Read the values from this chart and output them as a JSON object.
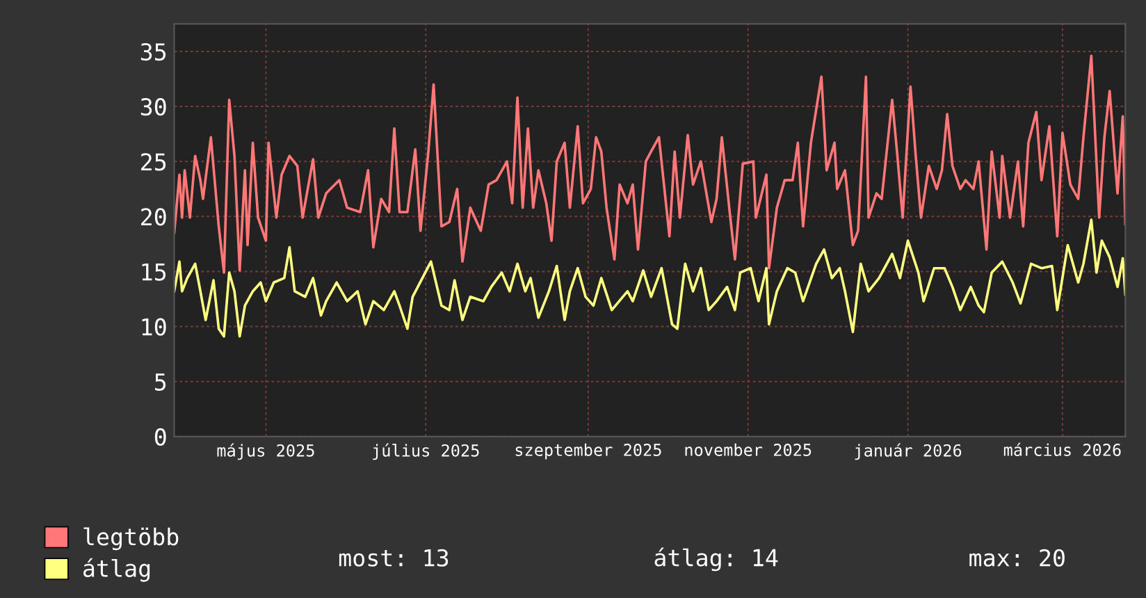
{
  "chart_data": {
    "type": "line",
    "xlim": [
      "2025-04-11",
      "2026-04-09"
    ],
    "xticks": [
      {
        "value": "2025-05-16",
        "label": "május 2025"
      },
      {
        "value": "2025-07-16",
        "label": "július 2025"
      },
      {
        "value": "2025-09-16",
        "label": "szeptember 2025"
      },
      {
        "value": "2025-11-16",
        "label": "november 2025"
      },
      {
        "value": "2026-01-16",
        "label": "január 2026"
      },
      {
        "value": "2026-03-16",
        "label": "március 2026"
      }
    ],
    "ylim": [
      0,
      37.5
    ],
    "yticks": [
      0,
      5,
      10,
      15,
      20,
      25,
      30,
      35
    ],
    "grid": true,
    "legend": "bottom",
    "marker": "none",
    "line_style": "solid",
    "annotations": [
      "most: 13",
      "átlag: 14",
      "max: 20"
    ],
    "series": [
      {
        "name": "legtöbb",
        "color": "#ff7777",
        "x": [
          "2025-04-11",
          "2025-04-13",
          "2025-04-14",
          "2025-04-15",
          "2025-04-17",
          "2025-04-19",
          "2025-04-21",
          "2025-04-22",
          "2025-04-25",
          "2025-04-28",
          "2025-04-30",
          "2025-05-02",
          "2025-05-04",
          "2025-05-06",
          "2025-05-08",
          "2025-05-09",
          "2025-05-11",
          "2025-05-13",
          "2025-05-16",
          "2025-05-17",
          "2025-05-20",
          "2025-05-22",
          "2025-05-25",
          "2025-05-28",
          "2025-05-30",
          "2025-06-03",
          "2025-06-05",
          "2025-06-08",
          "2025-06-13",
          "2025-06-16",
          "2025-06-21",
          "2025-06-24",
          "2025-06-26",
          "2025-06-29",
          "2025-07-02",
          "2025-07-04",
          "2025-07-06",
          "2025-07-09",
          "2025-07-12",
          "2025-07-14",
          "2025-07-17",
          "2025-07-19",
          "2025-07-22",
          "2025-07-25",
          "2025-07-28",
          "2025-07-30",
          "2025-08-02",
          "2025-08-06",
          "2025-08-09",
          "2025-08-12",
          "2025-08-16",
          "2025-08-18",
          "2025-08-20",
          "2025-08-22",
          "2025-08-24",
          "2025-08-26",
          "2025-08-28",
          "2025-08-31",
          "2025-09-02",
          "2025-09-04",
          "2025-09-07",
          "2025-09-09",
          "2025-09-12",
          "2025-09-14",
          "2025-09-17",
          "2025-09-19",
          "2025-09-21",
          "2025-09-23",
          "2025-09-26",
          "2025-09-28",
          "2025-10-01",
          "2025-10-03",
          "2025-10-05",
          "2025-10-08",
          "2025-10-10",
          "2025-10-13",
          "2025-10-17",
          "2025-10-19",
          "2025-10-21",
          "2025-10-24",
          "2025-10-26",
          "2025-10-29",
          "2025-11-02",
          "2025-11-04",
          "2025-11-06",
          "2025-11-09",
          "2025-11-11",
          "2025-11-14",
          "2025-11-18",
          "2025-11-19",
          "2025-11-23",
          "2025-11-24",
          "2025-11-27",
          "2025-11-30",
          "2025-12-03",
          "2025-12-05",
          "2025-12-07",
          "2025-12-10",
          "2025-12-14",
          "2025-12-16",
          "2025-12-19",
          "2025-12-20",
          "2025-12-23",
          "2025-12-26",
          "2025-12-28",
          "2025-12-31",
          "2026-01-01",
          "2026-01-04",
          "2026-01-06",
          "2026-01-10",
          "2026-01-12",
          "2026-01-14",
          "2026-01-17",
          "2026-01-19",
          "2026-01-21",
          "2026-01-24",
          "2026-01-27",
          "2026-01-29",
          "2026-01-31",
          "2026-02-02",
          "2026-02-05",
          "2026-02-07",
          "2026-02-10",
          "2026-02-12",
          "2026-02-15",
          "2026-02-17",
          "2026-02-20",
          "2026-02-21",
          "2026-02-24",
          "2026-02-27",
          "2026-03-01",
          "2026-03-03",
          "2026-03-06",
          "2026-03-08",
          "2026-03-11",
          "2026-03-14",
          "2026-03-16",
          "2026-03-19",
          "2026-03-22",
          "2026-03-24",
          "2026-03-27",
          "2026-03-30",
          "2026-04-01",
          "2026-04-03",
          "2026-04-06",
          "2026-04-08",
          "2026-04-09"
        ],
        "values": [
          18.5,
          23.8,
          19.9,
          24.2,
          19.9,
          25.5,
          23.3,
          21.6,
          27.2,
          19.1,
          14.9,
          30.6,
          25.5,
          15.1,
          24.2,
          17.4,
          26.7,
          19.9,
          17.8,
          26.7,
          19.9,
          23.8,
          25.5,
          24.6,
          19.9,
          25.2,
          19.9,
          22.1,
          23.3,
          20.8,
          20.4,
          24.2,
          17.2,
          21.6,
          20.4,
          28.0,
          20.4,
          20.4,
          26.1,
          18.7,
          25.9,
          32.0,
          19.1,
          19.5,
          22.5,
          15.9,
          20.8,
          18.7,
          22.9,
          23.3,
          25.0,
          21.2,
          30.8,
          20.8,
          28.0,
          20.8,
          24.2,
          21.2,
          17.8,
          25.0,
          26.7,
          20.8,
          28.2,
          21.2,
          22.5,
          27.2,
          25.9,
          20.8,
          16.1,
          22.9,
          21.2,
          22.9,
          17.0,
          25.0,
          25.9,
          27.2,
          18.2,
          25.9,
          19.9,
          27.4,
          22.9,
          25.0,
          19.5,
          21.6,
          27.2,
          20.4,
          16.1,
          24.8,
          25.0,
          19.9,
          23.8,
          15.3,
          20.8,
          23.3,
          23.3,
          26.7,
          19.1,
          26.7,
          32.7,
          24.2,
          26.7,
          22.5,
          24.2,
          17.4,
          18.7,
          32.7,
          19.9,
          22.1,
          21.6,
          30.6,
          25.5,
          19.9,
          31.8,
          25.5,
          19.9,
          24.6,
          22.5,
          24.2,
          29.3,
          24.6,
          22.5,
          23.3,
          22.5,
          25.0,
          17.0,
          25.9,
          19.9,
          25.5,
          19.9,
          25.0,
          19.1,
          26.7,
          29.5,
          23.3,
          28.2,
          18.2,
          27.6,
          22.9,
          21.6,
          27.2,
          34.6,
          19.9,
          27.2,
          31.4,
          22.1,
          29.1,
          19.3
        ]
      },
      {
        "name": "átlag",
        "color": "#ffff80",
        "x": [
          "2025-04-11",
          "2025-04-13",
          "2025-04-14",
          "2025-04-16",
          "2025-04-19",
          "2025-04-21",
          "2025-04-23",
          "2025-04-26",
          "2025-04-28",
          "2025-04-30",
          "2025-05-02",
          "2025-05-04",
          "2025-05-06",
          "2025-05-08",
          "2025-05-11",
          "2025-05-14",
          "2025-05-16",
          "2025-05-19",
          "2025-05-23",
          "2025-05-25",
          "2025-05-27",
          "2025-05-31",
          "2025-06-03",
          "2025-06-06",
          "2025-06-08",
          "2025-06-12",
          "2025-06-16",
          "2025-06-20",
          "2025-06-23",
          "2025-06-26",
          "2025-06-30",
          "2025-07-04",
          "2025-07-06",
          "2025-07-09",
          "2025-07-11",
          "2025-07-18",
          "2025-07-22",
          "2025-07-25",
          "2025-07-27",
          "2025-07-30",
          "2025-08-02",
          "2025-08-07",
          "2025-08-10",
          "2025-08-14",
          "2025-08-17",
          "2025-08-20",
          "2025-08-23",
          "2025-08-25",
          "2025-08-28",
          "2025-09-01",
          "2025-09-04",
          "2025-09-07",
          "2025-09-09",
          "2025-09-12",
          "2025-09-15",
          "2025-09-18",
          "2025-09-21",
          "2025-09-25",
          "2025-10-01",
          "2025-10-03",
          "2025-10-07",
          "2025-10-10",
          "2025-10-14",
          "2025-10-18",
          "2025-10-20",
          "2025-10-23",
          "2025-10-26",
          "2025-10-29",
          "2025-11-01",
          "2025-11-04",
          "2025-11-08",
          "2025-11-11",
          "2025-11-13",
          "2025-11-17",
          "2025-11-20",
          "2025-11-23",
          "2025-11-24",
          "2025-11-27",
          "2025-12-01",
          "2025-12-04",
          "2025-12-07",
          "2025-12-12",
          "2025-12-15",
          "2025-12-18",
          "2025-12-21",
          "2025-12-23",
          "2025-12-26",
          "2025-12-29",
          "2026-01-01",
          "2026-01-05",
          "2026-01-10",
          "2026-01-13",
          "2026-01-16",
          "2026-01-20",
          "2026-01-22",
          "2026-01-26",
          "2026-01-30",
          "2026-02-02",
          "2026-02-05",
          "2026-02-09",
          "2026-02-12",
          "2026-02-14",
          "2026-02-17",
          "2026-02-21",
          "2026-02-25",
          "2026-02-28",
          "2026-03-04",
          "2026-03-08",
          "2026-03-12",
          "2026-03-14",
          "2026-03-18",
          "2026-03-22",
          "2026-03-24",
          "2026-03-27",
          "2026-03-29",
          "2026-03-31",
          "2026-04-03",
          "2026-04-06",
          "2026-04-08",
          "2026-04-09"
        ],
        "values": [
          13.2,
          15.9,
          13.2,
          14.4,
          15.7,
          13.2,
          10.6,
          14.2,
          9.8,
          9.1,
          14.9,
          13.2,
          9.1,
          11.9,
          13.2,
          14.0,
          12.3,
          14.0,
          14.4,
          17.2,
          13.2,
          12.7,
          14.4,
          11.0,
          12.3,
          14.0,
          12.3,
          13.2,
          10.2,
          12.3,
          11.5,
          13.2,
          11.9,
          9.8,
          12.7,
          15.9,
          11.9,
          11.5,
          14.2,
          10.6,
          12.7,
          12.3,
          13.6,
          14.9,
          13.2,
          15.7,
          13.2,
          14.4,
          10.8,
          13.2,
          15.5,
          10.6,
          13.2,
          15.3,
          12.7,
          11.9,
          14.4,
          11.5,
          13.2,
          12.3,
          15.1,
          12.7,
          15.3,
          10.2,
          9.8,
          15.7,
          13.2,
          15.3,
          11.5,
          12.3,
          13.6,
          11.5,
          14.9,
          15.3,
          12.3,
          15.3,
          10.2,
          13.2,
          15.3,
          14.9,
          12.3,
          15.7,
          17.0,
          14.4,
          15.3,
          13.2,
          9.5,
          15.7,
          13.2,
          14.4,
          16.6,
          14.4,
          17.8,
          14.9,
          12.3,
          15.3,
          15.3,
          13.6,
          11.5,
          13.6,
          11.9,
          11.3,
          14.9,
          15.9,
          14.0,
          12.1,
          15.7,
          15.3,
          15.5,
          11.5,
          17.4,
          14.0,
          15.7,
          19.7,
          14.9,
          17.8,
          16.3,
          13.6,
          16.2,
          12.9
        ]
      }
    ]
  }
}
